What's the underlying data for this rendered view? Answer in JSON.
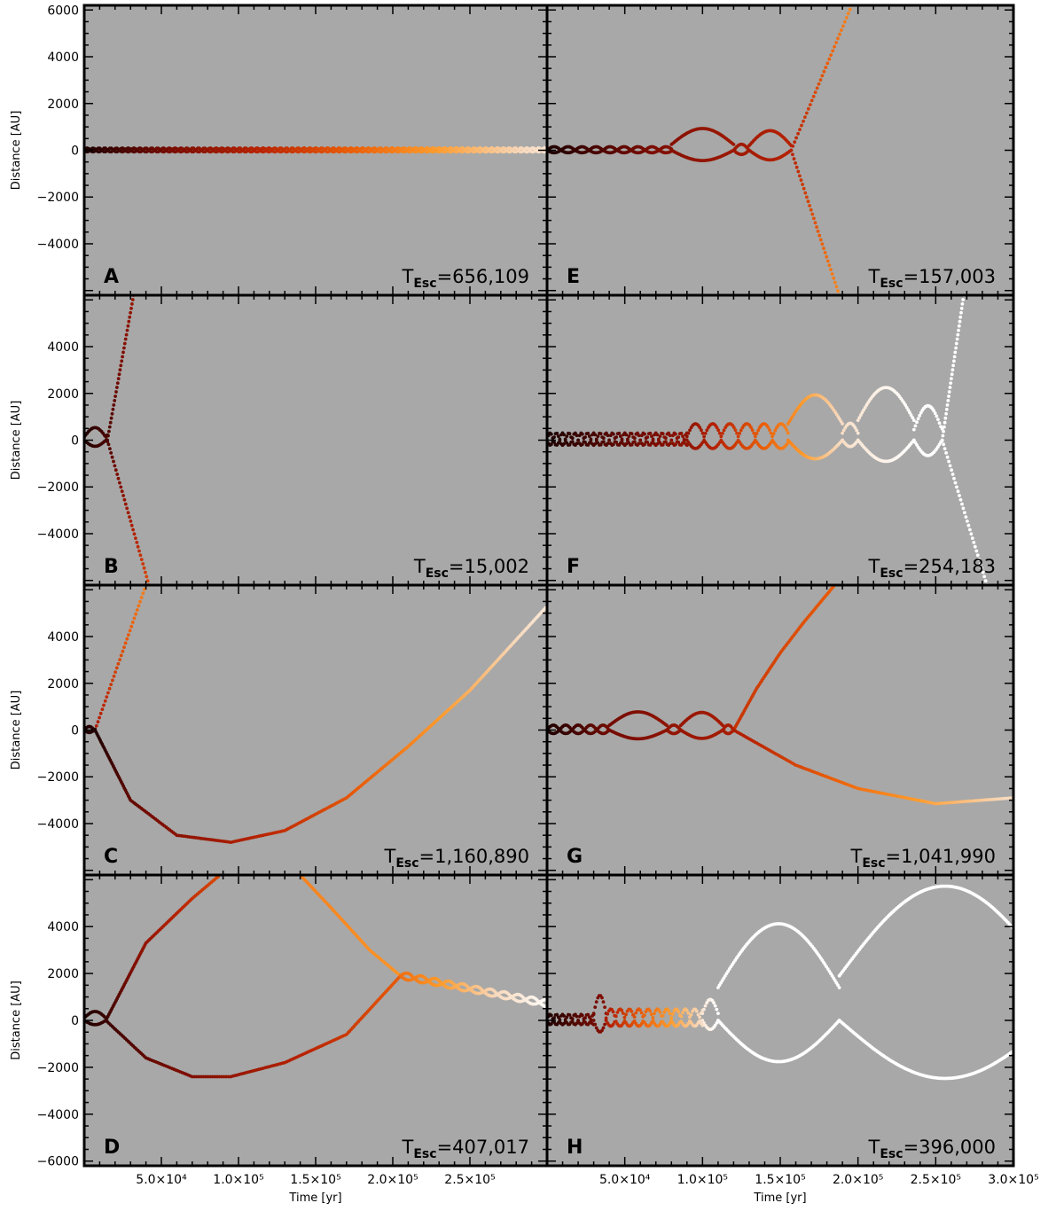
{
  "chart_data": {
    "type": "scatter",
    "xlabel": "Time [yr]",
    "ylabel": "Distance [AU]",
    "xlim": [
      0,
      300000
    ],
    "ylim": [
      -6200,
      6200
    ],
    "x_ticks": [
      50000,
      100000,
      150000,
      200000,
      250000,
      300000
    ],
    "x_tick_labels": [
      "5.0×10⁴",
      "1.0×10⁵",
      "1.5×10⁵",
      "2.0×10⁵",
      "2.5×10⁵",
      "3.0×10⁵"
    ],
    "y_ticks": [
      6000,
      4000,
      2000,
      0,
      -2000,
      -4000,
      -6000
    ],
    "y_tick_labels": [
      "6000",
      "4000",
      "2000",
      "0",
      "−2000",
      "−4000",
      "−6000"
    ],
    "colormap": [
      "#1e0000",
      "#7a0c00",
      "#b82200",
      "#e95b06",
      "#ff9a2a",
      "#f7d9bd",
      "#ffffff"
    ],
    "panel_background": "#a8a8a8",
    "panels": [
      {
        "letter": "A",
        "t_esc_label": "T",
        "t_esc_sub": "Esc",
        "t_esc_value": "=656,109",
        "x_end": 300000,
        "segments": [
          {
            "type": "loops",
            "x0": 0,
            "x1": 300000,
            "period": 3800,
            "amp": 110,
            "amp_end": 120,
            "center": 0,
            "c0": 0.0,
            "c1": 0.88
          }
        ]
      },
      {
        "letter": "E",
        "t_esc_label": "T",
        "t_esc_sub": "Esc",
        "t_esc_value": "=157,003",
        "x_end": 157003,
        "segments": [
          {
            "type": "loops",
            "x0": 0,
            "x1": 80000,
            "period": 9000,
            "amp": 180,
            "center": 0,
            "c0": 0.0,
            "c1": 0.2
          },
          {
            "type": "loops",
            "x0": 80000,
            "x1": 120000,
            "period": 40000,
            "amp": 800,
            "center": 250,
            "c0": 0.2,
            "c1": 0.26
          },
          {
            "type": "loops",
            "x0": 120000,
            "x1": 130000,
            "period": 10000,
            "amp": 300,
            "center": 0,
            "c0": 0.26,
            "c1": 0.28
          },
          {
            "type": "loops",
            "x0": 130000,
            "x1": 157003,
            "period": 27000,
            "amp": 750,
            "center": 200,
            "c0": 0.28,
            "c1": 0.33
          },
          {
            "type": "escape",
            "x0": 157003,
            "x1": 188000,
            "y0": 0,
            "y1": -6200,
            "c0": 0.33,
            "c1": 0.62
          },
          {
            "type": "escape",
            "x0": 157003,
            "x1": 196000,
            "y0": 0,
            "y1": 6200,
            "c0": 0.33,
            "c1": 0.62
          }
        ]
      },
      {
        "letter": "B",
        "t_esc_label": "T",
        "t_esc_sub": "Esc",
        "t_esc_value": "=15,002",
        "x_end": 15002,
        "segments": [
          {
            "type": "loops",
            "x0": 0,
            "x1": 15002,
            "period": 14000,
            "amp": 480,
            "center": 130,
            "c0": 0.0,
            "c1": 0.08
          },
          {
            "type": "escape",
            "x0": 15002,
            "x1": 32000,
            "y0": 0,
            "y1": 6200,
            "c0": 0.08,
            "c1": 0.25
          },
          {
            "type": "escape",
            "x0": 15002,
            "x1": 42000,
            "y0": 0,
            "y1": -6200,
            "c0": 0.08,
            "c1": 0.45
          }
        ]
      },
      {
        "letter": "F",
        "t_esc_label": "T",
        "t_esc_sub": "Esc",
        "t_esc_value": "=254,183",
        "x_end": 254183,
        "segments": [
          {
            "type": "loops",
            "x0": 0,
            "x1": 90000,
            "period": 4000,
            "amp": 360,
            "center": 0,
            "c0": 0.0,
            "c1": 0.22
          },
          {
            "type": "loops",
            "x0": 90000,
            "x1": 155000,
            "period": 11000,
            "amp": 650,
            "center": 150,
            "c0": 0.22,
            "c1": 0.6
          },
          {
            "type": "loops",
            "x0": 155000,
            "x1": 190000,
            "period": 35000,
            "amp": 1450,
            "center": 700,
            "c0": 0.6,
            "c1": 0.85
          },
          {
            "type": "loops",
            "x0": 190000,
            "x1": 200000,
            "period": 10000,
            "amp": 500,
            "center": 300,
            "c0": 0.85,
            "c1": 0.9
          },
          {
            "type": "loops",
            "x0": 200000,
            "x1": 236000,
            "period": 36000,
            "amp": 1650,
            "center": 850,
            "c0": 0.9,
            "c1": 1.0
          },
          {
            "type": "loops",
            "x0": 236000,
            "x1": 254183,
            "period": 18000,
            "amp": 1200,
            "center": 450,
            "c0": 1.0,
            "c1": 1.0
          },
          {
            "type": "escape",
            "x0": 254183,
            "x1": 268000,
            "y0": 0,
            "y1": 6200,
            "c0": 1.0,
            "c1": 1.0
          },
          {
            "type": "escape",
            "x0": 254183,
            "x1": 283000,
            "y0": 0,
            "y1": -6200,
            "c0": 1.0,
            "c1": 1.0
          }
        ]
      },
      {
        "letter": "C",
        "t_esc_label": "T",
        "t_esc_sub": "Esc",
        "t_esc_value": "=1,160,890",
        "x_end": 300000,
        "segments": [
          {
            "type": "loops",
            "x0": 0,
            "x1": 7000,
            "period": 6500,
            "amp": 180,
            "center": 0,
            "c0": 0.0,
            "c1": 0.02
          },
          {
            "type": "escape",
            "x0": 7000,
            "x1": 40000,
            "y0": 0,
            "y1": 6200,
            "c0": 0.3,
            "c1": 0.6
          },
          {
            "type": "curve",
            "points": [
              [
                7000,
                0
              ],
              [
                30000,
                -3000
              ],
              [
                60000,
                -4500
              ],
              [
                95000,
                -4800
              ],
              [
                130000,
                -4300
              ],
              [
                170000,
                -2900
              ],
              [
                210000,
                -700
              ],
              [
                250000,
                1700
              ],
              [
                300000,
                5300
              ]
            ],
            "c0": 0.0,
            "c1": 0.9
          }
        ]
      },
      {
        "letter": "G",
        "t_esc_label": "T",
        "t_esc_sub": "Esc",
        "t_esc_value": "=1,041,990",
        "x_end": 300000,
        "segments": [
          {
            "type": "loops",
            "x0": 0,
            "x1": 40000,
            "period": 8000,
            "amp": 250,
            "center": 0,
            "c0": 0.0,
            "c1": 0.15
          },
          {
            "type": "loops",
            "x0": 40000,
            "x1": 77000,
            "period": 37000,
            "amp": 680,
            "center": 200,
            "c0": 0.15,
            "c1": 0.22
          },
          {
            "type": "loops",
            "x0": 77000,
            "x1": 86000,
            "period": 9000,
            "amp": 250,
            "center": 0,
            "c0": 0.22,
            "c1": 0.24
          },
          {
            "type": "loops",
            "x0": 86000,
            "x1": 113000,
            "period": 27000,
            "amp": 650,
            "center": 200,
            "c0": 0.24,
            "c1": 0.28
          },
          {
            "type": "loops",
            "x0": 113000,
            "x1": 120000,
            "period": 7000,
            "amp": 250,
            "center": 0,
            "c0": 0.28,
            "c1": 0.3
          },
          {
            "type": "curve",
            "points": [
              [
                120000,
                0
              ],
              [
                135000,
                1800
              ],
              [
                150000,
                3300
              ],
              [
                165000,
                4600
              ],
              [
                185000,
                6200
              ]
            ],
            "c0": 0.38,
            "c1": 0.5
          },
          {
            "type": "curve",
            "points": [
              [
                120000,
                0
              ],
              [
                160000,
                -1500
              ],
              [
                200000,
                -2500
              ],
              [
                250000,
                -3150
              ],
              [
                300000,
                -2900
              ]
            ],
            "c0": 0.3,
            "c1": 0.85
          }
        ]
      },
      {
        "letter": "D",
        "t_esc_label": "T",
        "t_esc_sub": "Esc",
        "t_esc_value": "=407,017",
        "x_end": 300000,
        "segments": [
          {
            "type": "loops",
            "x0": 0,
            "x1": 14000,
            "period": 14000,
            "amp": 330,
            "center": 100,
            "c0": 0.0,
            "c1": 0.05
          },
          {
            "type": "curve",
            "points": [
              [
                14000,
                0
              ],
              [
                40000,
                3300
              ],
              [
                70000,
                5200
              ],
              [
                88000,
                6200
              ]
            ],
            "c0": 0.05,
            "c1": 0.45
          },
          {
            "type": "curve",
            "points": [
              [
                140000,
                6200
              ],
              [
                160000,
                4800
              ],
              [
                185000,
                3000
              ],
              [
                205000,
                1900
              ]
            ],
            "c0": 0.6,
            "c1": 0.65
          },
          {
            "type": "curve",
            "points": [
              [
                14000,
                0
              ],
              [
                40000,
                -1600
              ],
              [
                70000,
                -2400
              ],
              [
                95000,
                -2400
              ],
              [
                130000,
                -1800
              ],
              [
                170000,
                -600
              ],
              [
                205000,
                1900
              ]
            ],
            "c0": 0.05,
            "c1": 0.5
          },
          {
            "type": "loops",
            "x0": 205000,
            "x1": 300000,
            "period": 9000,
            "amp": 200,
            "center": 1900,
            "center_end": 700,
            "c0": 0.55,
            "c1": 0.98
          }
        ]
      },
      {
        "letter": "H",
        "t_esc_label": "T",
        "t_esc_sub": "Esc",
        "t_esc_value": "=396,000",
        "x_end": 300000,
        "segments": [
          {
            "type": "loops",
            "x0": 0,
            "x1": 30000,
            "period": 4000,
            "amp": 300,
            "center": 0,
            "c0": 0.0,
            "c1": 0.15
          },
          {
            "type": "loops",
            "x0": 30000,
            "x1": 38000,
            "period": 8000,
            "amp": 900,
            "center": 300,
            "c0": 0.15,
            "c1": 0.2
          },
          {
            "type": "loops",
            "x0": 38000,
            "x1": 100000,
            "period": 6000,
            "amp": 450,
            "center": 100,
            "c0": 0.3,
            "c1": 0.85
          },
          {
            "type": "loops",
            "x0": 100000,
            "x1": 110000,
            "period": 10000,
            "amp": 700,
            "center": 300,
            "c0": 0.9,
            "c1": 1.0
          },
          {
            "type": "loops",
            "x0": 110000,
            "x1": 188000,
            "period": 78000,
            "amp": 3200,
            "center": 1400,
            "c0": 1.0,
            "c1": 1.0
          },
          {
            "type": "loops",
            "x0": 188000,
            "x1": 300000,
            "period": 136000,
            "amp": 4500,
            "center": 1900,
            "c0": 1.0,
            "c1": 1.0
          }
        ]
      }
    ]
  }
}
